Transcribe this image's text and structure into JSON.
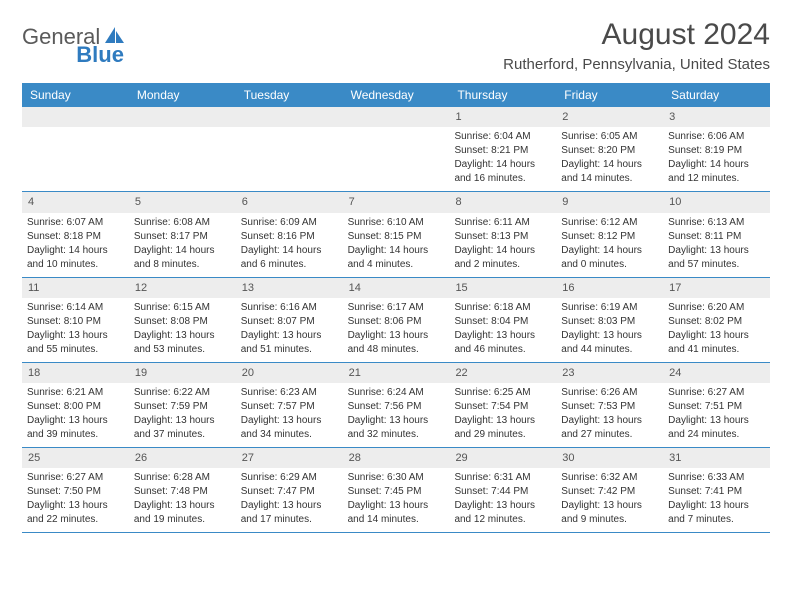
{
  "branding": {
    "word1": "General",
    "word2": "Blue",
    "logo_fill": "#2f7bbf",
    "text_color": "#5a5a5a"
  },
  "header": {
    "month_title": "August 2024",
    "location": "Rutherford, Pennsylvania, United States"
  },
  "calendar": {
    "header_bg": "#3a8ac6",
    "header_text_color": "#ffffff",
    "daynum_bg": "#ededed",
    "row_border": "#3a8ac6",
    "day_names": [
      "Sunday",
      "Monday",
      "Tuesday",
      "Wednesday",
      "Thursday",
      "Friday",
      "Saturday"
    ],
    "weeks": [
      [
        {
          "n": "",
          "empty": true
        },
        {
          "n": "",
          "empty": true
        },
        {
          "n": "",
          "empty": true
        },
        {
          "n": "",
          "empty": true
        },
        {
          "n": "1",
          "sunrise": "Sunrise: 6:04 AM",
          "sunset": "Sunset: 8:21 PM",
          "daylight1": "Daylight: 14 hours",
          "daylight2": "and 16 minutes."
        },
        {
          "n": "2",
          "sunrise": "Sunrise: 6:05 AM",
          "sunset": "Sunset: 8:20 PM",
          "daylight1": "Daylight: 14 hours",
          "daylight2": "and 14 minutes."
        },
        {
          "n": "3",
          "sunrise": "Sunrise: 6:06 AM",
          "sunset": "Sunset: 8:19 PM",
          "daylight1": "Daylight: 14 hours",
          "daylight2": "and 12 minutes."
        }
      ],
      [
        {
          "n": "4",
          "sunrise": "Sunrise: 6:07 AM",
          "sunset": "Sunset: 8:18 PM",
          "daylight1": "Daylight: 14 hours",
          "daylight2": "and 10 minutes."
        },
        {
          "n": "5",
          "sunrise": "Sunrise: 6:08 AM",
          "sunset": "Sunset: 8:17 PM",
          "daylight1": "Daylight: 14 hours",
          "daylight2": "and 8 minutes."
        },
        {
          "n": "6",
          "sunrise": "Sunrise: 6:09 AM",
          "sunset": "Sunset: 8:16 PM",
          "daylight1": "Daylight: 14 hours",
          "daylight2": "and 6 minutes."
        },
        {
          "n": "7",
          "sunrise": "Sunrise: 6:10 AM",
          "sunset": "Sunset: 8:15 PM",
          "daylight1": "Daylight: 14 hours",
          "daylight2": "and 4 minutes."
        },
        {
          "n": "8",
          "sunrise": "Sunrise: 6:11 AM",
          "sunset": "Sunset: 8:13 PM",
          "daylight1": "Daylight: 14 hours",
          "daylight2": "and 2 minutes."
        },
        {
          "n": "9",
          "sunrise": "Sunrise: 6:12 AM",
          "sunset": "Sunset: 8:12 PM",
          "daylight1": "Daylight: 14 hours",
          "daylight2": "and 0 minutes."
        },
        {
          "n": "10",
          "sunrise": "Sunrise: 6:13 AM",
          "sunset": "Sunset: 8:11 PM",
          "daylight1": "Daylight: 13 hours",
          "daylight2": "and 57 minutes."
        }
      ],
      [
        {
          "n": "11",
          "sunrise": "Sunrise: 6:14 AM",
          "sunset": "Sunset: 8:10 PM",
          "daylight1": "Daylight: 13 hours",
          "daylight2": "and 55 minutes."
        },
        {
          "n": "12",
          "sunrise": "Sunrise: 6:15 AM",
          "sunset": "Sunset: 8:08 PM",
          "daylight1": "Daylight: 13 hours",
          "daylight2": "and 53 minutes."
        },
        {
          "n": "13",
          "sunrise": "Sunrise: 6:16 AM",
          "sunset": "Sunset: 8:07 PM",
          "daylight1": "Daylight: 13 hours",
          "daylight2": "and 51 minutes."
        },
        {
          "n": "14",
          "sunrise": "Sunrise: 6:17 AM",
          "sunset": "Sunset: 8:06 PM",
          "daylight1": "Daylight: 13 hours",
          "daylight2": "and 48 minutes."
        },
        {
          "n": "15",
          "sunrise": "Sunrise: 6:18 AM",
          "sunset": "Sunset: 8:04 PM",
          "daylight1": "Daylight: 13 hours",
          "daylight2": "and 46 minutes."
        },
        {
          "n": "16",
          "sunrise": "Sunrise: 6:19 AM",
          "sunset": "Sunset: 8:03 PM",
          "daylight1": "Daylight: 13 hours",
          "daylight2": "and 44 minutes."
        },
        {
          "n": "17",
          "sunrise": "Sunrise: 6:20 AM",
          "sunset": "Sunset: 8:02 PM",
          "daylight1": "Daylight: 13 hours",
          "daylight2": "and 41 minutes."
        }
      ],
      [
        {
          "n": "18",
          "sunrise": "Sunrise: 6:21 AM",
          "sunset": "Sunset: 8:00 PM",
          "daylight1": "Daylight: 13 hours",
          "daylight2": "and 39 minutes."
        },
        {
          "n": "19",
          "sunrise": "Sunrise: 6:22 AM",
          "sunset": "Sunset: 7:59 PM",
          "daylight1": "Daylight: 13 hours",
          "daylight2": "and 37 minutes."
        },
        {
          "n": "20",
          "sunrise": "Sunrise: 6:23 AM",
          "sunset": "Sunset: 7:57 PM",
          "daylight1": "Daylight: 13 hours",
          "daylight2": "and 34 minutes."
        },
        {
          "n": "21",
          "sunrise": "Sunrise: 6:24 AM",
          "sunset": "Sunset: 7:56 PM",
          "daylight1": "Daylight: 13 hours",
          "daylight2": "and 32 minutes."
        },
        {
          "n": "22",
          "sunrise": "Sunrise: 6:25 AM",
          "sunset": "Sunset: 7:54 PM",
          "daylight1": "Daylight: 13 hours",
          "daylight2": "and 29 minutes."
        },
        {
          "n": "23",
          "sunrise": "Sunrise: 6:26 AM",
          "sunset": "Sunset: 7:53 PM",
          "daylight1": "Daylight: 13 hours",
          "daylight2": "and 27 minutes."
        },
        {
          "n": "24",
          "sunrise": "Sunrise: 6:27 AM",
          "sunset": "Sunset: 7:51 PM",
          "daylight1": "Daylight: 13 hours",
          "daylight2": "and 24 minutes."
        }
      ],
      [
        {
          "n": "25",
          "sunrise": "Sunrise: 6:27 AM",
          "sunset": "Sunset: 7:50 PM",
          "daylight1": "Daylight: 13 hours",
          "daylight2": "and 22 minutes."
        },
        {
          "n": "26",
          "sunrise": "Sunrise: 6:28 AM",
          "sunset": "Sunset: 7:48 PM",
          "daylight1": "Daylight: 13 hours",
          "daylight2": "and 19 minutes."
        },
        {
          "n": "27",
          "sunrise": "Sunrise: 6:29 AM",
          "sunset": "Sunset: 7:47 PM",
          "daylight1": "Daylight: 13 hours",
          "daylight2": "and 17 minutes."
        },
        {
          "n": "28",
          "sunrise": "Sunrise: 6:30 AM",
          "sunset": "Sunset: 7:45 PM",
          "daylight1": "Daylight: 13 hours",
          "daylight2": "and 14 minutes."
        },
        {
          "n": "29",
          "sunrise": "Sunrise: 6:31 AM",
          "sunset": "Sunset: 7:44 PM",
          "daylight1": "Daylight: 13 hours",
          "daylight2": "and 12 minutes."
        },
        {
          "n": "30",
          "sunrise": "Sunrise: 6:32 AM",
          "sunset": "Sunset: 7:42 PM",
          "daylight1": "Daylight: 13 hours",
          "daylight2": "and 9 minutes."
        },
        {
          "n": "31",
          "sunrise": "Sunrise: 6:33 AM",
          "sunset": "Sunset: 7:41 PM",
          "daylight1": "Daylight: 13 hours",
          "daylight2": "and 7 minutes."
        }
      ]
    ]
  }
}
